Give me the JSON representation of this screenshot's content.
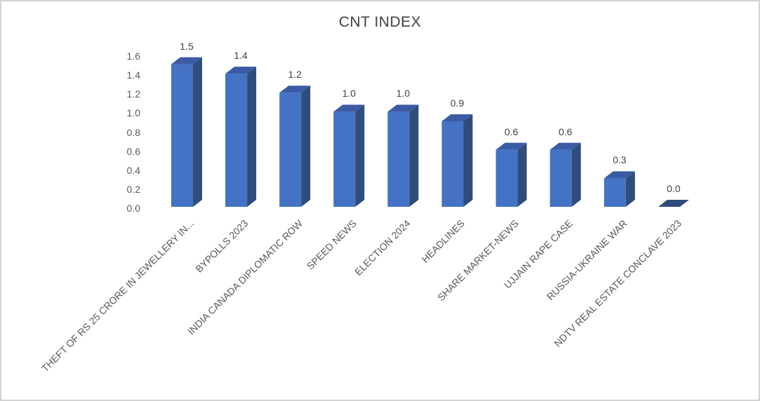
{
  "chart_data": {
    "type": "bar",
    "style": "3d-column",
    "title": "CNT INDEX",
    "categories": [
      "THEFT OF RS 25 CRORE IN JEWELLERY IN...",
      "BYPOLLS 2023",
      "INDIA CANADA DIPLOMATIC ROW",
      "SPEED NEWS",
      "ELECTION 2024",
      "HEADLINES",
      "SHARE MARKET-NEWS",
      "UJJAIN RAPE CASE",
      "RUSSIA-UKRAINE WAR",
      "NDTV REAL ESTATE CONCLAVE 2023"
    ],
    "values": [
      1.5,
      1.4,
      1.2,
      1.0,
      1.0,
      0.9,
      0.6,
      0.6,
      0.3,
      0.0
    ],
    "value_labels": [
      "1.5",
      "1.4",
      "1.2",
      "1.0",
      "1.0",
      "0.9",
      "0.6",
      "0.6",
      "0.3",
      "0.0"
    ],
    "yticks": [
      "0.0",
      "0.2",
      "0.4",
      "0.6",
      "0.8",
      "1.0",
      "1.2",
      "1.4",
      "1.6"
    ],
    "ylim": [
      0,
      1.6
    ],
    "xlabel": "",
    "ylabel": "",
    "grid": false,
    "legend": false,
    "colors": {
      "bar_front": "#4472C4",
      "bar_top": "#3B5BA5",
      "bar_side": "#2E4D7B",
      "title_text": "#404040",
      "value_label_text": "#404040",
      "axis_text": "#595959",
      "frame_border": "#d2d2d2",
      "background": "#ffffff"
    }
  }
}
